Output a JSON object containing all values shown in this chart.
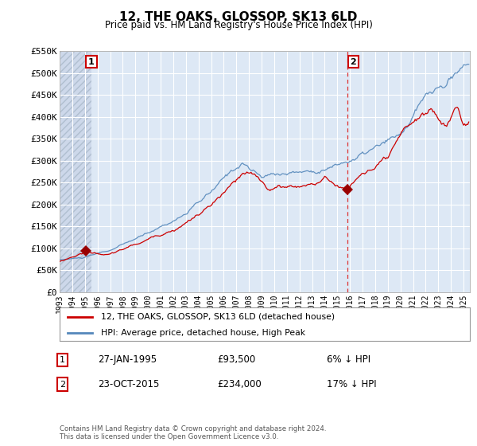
{
  "title": "12, THE OAKS, GLOSSOP, SK13 6LD",
  "subtitle": "Price paid vs. HM Land Registry's House Price Index (HPI)",
  "background_color": "#ffffff",
  "plot_bg_color": "#dde8f5",
  "hatch_color": "#b8c8dc",
  "grid_color": "#ffffff",
  "ylim": [
    0,
    550000
  ],
  "yticks": [
    0,
    50000,
    100000,
    150000,
    200000,
    250000,
    300000,
    350000,
    400000,
    450000,
    500000,
    550000
  ],
  "ytick_labels": [
    "£0",
    "£50K",
    "£100K",
    "£150K",
    "£200K",
    "£250K",
    "£300K",
    "£350K",
    "£400K",
    "£450K",
    "£500K",
    "£550K"
  ],
  "xlim_start": 1993.0,
  "xlim_end": 2025.5,
  "sale1_x": 1995.07,
  "sale1_y": 93500,
  "sale2_x": 2015.81,
  "sale2_y": 234000,
  "vline_x": 2015.81,
  "red_line_color": "#cc0000",
  "blue_line_color": "#5588bb",
  "marker_color": "#990000",
  "legend_label_red": "12, THE OAKS, GLOSSOP, SK13 6LD (detached house)",
  "legend_label_blue": "HPI: Average price, detached house, High Peak",
  "transaction1_date": "27-JAN-1995",
  "transaction1_price": "£93,500",
  "transaction1_hpi": "6% ↓ HPI",
  "transaction2_date": "23-OCT-2015",
  "transaction2_price": "£234,000",
  "transaction2_hpi": "17% ↓ HPI",
  "footer": "Contains HM Land Registry data © Crown copyright and database right 2024.\nThis data is licensed under the Open Government Licence v3.0."
}
